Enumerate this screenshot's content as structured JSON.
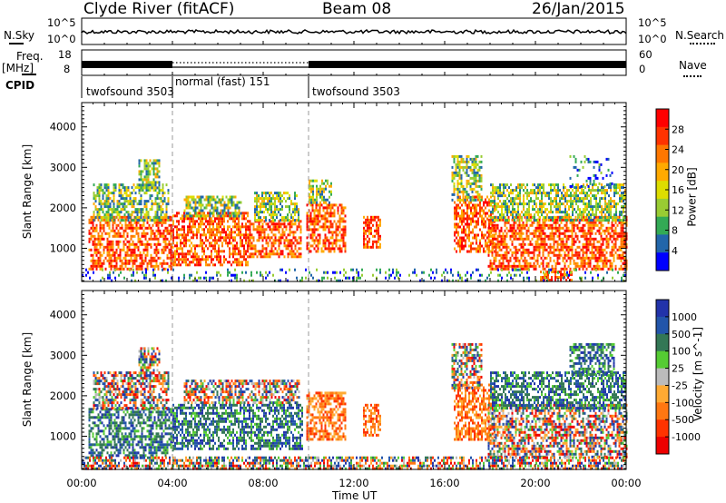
{
  "header": {
    "station": "Clyde River (fitACF)",
    "beam": "Beam 08",
    "date": "26/Jan/2015"
  },
  "status_panels": {
    "nsky_label": "N.Sky",
    "nsearch_label": "N.Search",
    "noise_ticks_left": [
      "10^5",
      "10^0"
    ],
    "noise_ticks_right": [
      "10^5",
      "10^0"
    ],
    "freq_label": "Freq.",
    "freq_unit": "[MHz]",
    "freq_ticks": [
      "18",
      "8"
    ],
    "nave_label": "Nave",
    "nave_ticks": [
      "60",
      "0"
    ],
    "cpid_label": "CPID",
    "cpid_modes": [
      {
        "label": "twofsound 3503",
        "start_hour": 0,
        "end_hour": 4
      },
      {
        "label": "normal (fast) 151",
        "start_hour": 4,
        "end_hour": 10
      },
      {
        "label": "twofsound 3503",
        "start_hour": 10,
        "end_hour": 24
      }
    ]
  },
  "x_axis": {
    "label": "Time UT",
    "ticks": [
      "00:00",
      "04:00",
      "08:00",
      "12:00",
      "16:00",
      "20:00",
      "00:00"
    ],
    "tick_hours": [
      0,
      4,
      8,
      12,
      16,
      20,
      24
    ]
  },
  "chart_data": [
    {
      "type": "heatmap",
      "name": "power",
      "ylabel": "Slant Range [km]",
      "ylim": [
        180,
        4600
      ],
      "y_ticks": [
        1000,
        2000,
        3000,
        4000
      ],
      "xlim_hours": [
        0,
        24
      ],
      "colorbar": {
        "label": "Power [dB]",
        "ticks": [
          "28",
          "24",
          "20",
          "16",
          "12",
          "8",
          "4"
        ],
        "colors": [
          "#ff0000",
          "#ff3300",
          "#ff7700",
          "#ffaa00",
          "#dddd00",
          "#99cc33",
          "#33aa55",
          "#2266aa",
          "#0000ff"
        ]
      },
      "scatter_regions": [
        {
          "t0": 0.3,
          "t1": 4.0,
          "r0": 500,
          "r1": 1800,
          "level": "high"
        },
        {
          "t0": 0.5,
          "t1": 3.8,
          "r0": 1700,
          "r1": 2600,
          "level": "mid"
        },
        {
          "t0": 2.5,
          "t1": 3.4,
          "r0": 2500,
          "r1": 3200,
          "level": "mid"
        },
        {
          "t0": 4.0,
          "t1": 7.3,
          "r0": 600,
          "r1": 1900,
          "level": "high"
        },
        {
          "t0": 4.5,
          "t1": 7.0,
          "r0": 1800,
          "r1": 2300,
          "level": "mid"
        },
        {
          "t0": 7.3,
          "t1": 9.7,
          "r0": 800,
          "r1": 1700,
          "level": "high"
        },
        {
          "t0": 7.6,
          "t1": 9.6,
          "r0": 1700,
          "r1": 2400,
          "level": "mid"
        },
        {
          "t0": 9.9,
          "t1": 11.6,
          "r0": 900,
          "r1": 2100,
          "level": "high"
        },
        {
          "t0": 10.0,
          "t1": 11.0,
          "r0": 2100,
          "r1": 2700,
          "level": "mid"
        },
        {
          "t0": 12.4,
          "t1": 13.2,
          "r0": 1000,
          "r1": 1800,
          "level": "high"
        },
        {
          "t0": 16.4,
          "t1": 18.2,
          "r0": 900,
          "r1": 2300,
          "level": "high"
        },
        {
          "t0": 16.3,
          "t1": 17.6,
          "r0": 2200,
          "r1": 3300,
          "level": "mid"
        },
        {
          "t0": 17.9,
          "t1": 24.0,
          "r0": 500,
          "r1": 1800,
          "level": "high"
        },
        {
          "t0": 18.0,
          "t1": 24.0,
          "r0": 1700,
          "r1": 2600,
          "level": "mid"
        },
        {
          "t0": 21.5,
          "t1": 23.5,
          "r0": 2500,
          "r1": 3300,
          "level": "low"
        },
        {
          "t0": 20.2,
          "t1": 21.6,
          "r0": 200,
          "r1": 450,
          "level": "high"
        },
        {
          "t0": 0.0,
          "t1": 24.0,
          "r0": 200,
          "r1": 500,
          "level": "low"
        }
      ]
    },
    {
      "type": "heatmap",
      "name": "velocity",
      "ylabel": "Slant Range [km]",
      "ylim": [
        180,
        4600
      ],
      "y_ticks": [
        1000,
        2000,
        3000,
        4000
      ],
      "xlim_hours": [
        0,
        24
      ],
      "colorbar": {
        "label": "Velocity [m s^-1]",
        "ticks": [
          "1000",
          "500",
          "100",
          "25",
          "-25",
          "-100",
          "-500",
          "-1000"
        ],
        "colors": [
          "#2233aa",
          "#2255aa",
          "#337755",
          "#55cc33",
          "#bbbbbb",
          "#ffaa33",
          "#ff7711",
          "#ff3300",
          "#ee0000"
        ]
      },
      "scatter_regions": [
        {
          "t0": 0.3,
          "t1": 4.0,
          "r0": 500,
          "r1": 1700,
          "level": "toward"
        },
        {
          "t0": 0.5,
          "t1": 3.8,
          "r0": 1700,
          "r1": 2600,
          "level": "mixed"
        },
        {
          "t0": 2.5,
          "t1": 3.4,
          "r0": 2500,
          "r1": 3200,
          "level": "mixed"
        },
        {
          "t0": 4.0,
          "t1": 9.7,
          "r0": 700,
          "r1": 1800,
          "level": "toward"
        },
        {
          "t0": 4.5,
          "t1": 9.6,
          "r0": 1800,
          "r1": 2400,
          "level": "mixed"
        },
        {
          "t0": 9.9,
          "t1": 11.6,
          "r0": 900,
          "r1": 2100,
          "level": "away"
        },
        {
          "t0": 12.4,
          "t1": 13.2,
          "r0": 1000,
          "r1": 1800,
          "level": "away"
        },
        {
          "t0": 16.4,
          "t1": 18.2,
          "r0": 900,
          "r1": 2300,
          "level": "away"
        },
        {
          "t0": 16.3,
          "t1": 17.6,
          "r0": 2200,
          "r1": 3300,
          "level": "mixed"
        },
        {
          "t0": 17.9,
          "t1": 24.0,
          "r0": 500,
          "r1": 1800,
          "level": "mixed"
        },
        {
          "t0": 18.0,
          "t1": 24.0,
          "r0": 1700,
          "r1": 2600,
          "level": "toward"
        },
        {
          "t0": 21.5,
          "t1": 23.5,
          "r0": 2500,
          "r1": 3300,
          "level": "toward"
        },
        {
          "t0": 0.0,
          "t1": 24.0,
          "r0": 200,
          "r1": 500,
          "level": "mixed"
        }
      ]
    }
  ]
}
